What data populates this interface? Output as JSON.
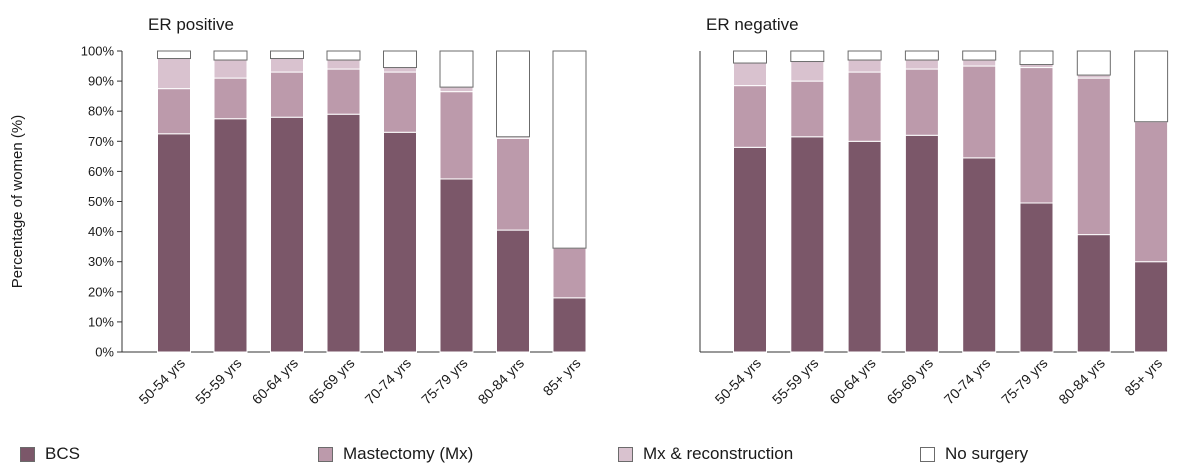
{
  "chart_data": [
    {
      "type": "bar",
      "stacked": true,
      "title": "ER positive",
      "ylabel": "Percentage of women (%)",
      "ylim": [
        0,
        100
      ],
      "yticks": [
        "0%",
        "10%",
        "20%",
        "30%",
        "40%",
        "50%",
        "60%",
        "70%",
        "80%",
        "90%",
        "100%"
      ],
      "categories": [
        "50-54 yrs",
        "55-59 yrs",
        "60-64 yrs",
        "65-69 yrs",
        "70-74 yrs",
        "75-79 yrs",
        "80-84 yrs",
        "85+ yrs"
      ],
      "series": [
        {
          "name": "BCS",
          "color": "#7b5769",
          "values": [
            72.5,
            77.5,
            78,
            79,
            73,
            57.5,
            40.5,
            18
          ]
        },
        {
          "name": "Mastectomy (Mx)",
          "color": "#bc9aab",
          "values": [
            15,
            13.5,
            15,
            15,
            20,
            29,
            30.5,
            16.5
          ]
        },
        {
          "name": "Mx & reconstruction",
          "color": "#d9c2cf",
          "values": [
            10,
            6,
            4.5,
            3,
            1.5,
            1.5,
            0.5,
            0
          ]
        },
        {
          "name": "No surgery",
          "color": "#ffffff",
          "values": [
            2.5,
            3,
            2.5,
            3,
            5.5,
            12,
            28.5,
            65.5
          ]
        }
      ]
    },
    {
      "type": "bar",
      "stacked": true,
      "title": "ER negative",
      "ylim": [
        0,
        100
      ],
      "categories": [
        "50-54 yrs",
        "55-59 yrs",
        "60-64 yrs",
        "65-69 yrs",
        "70-74 yrs",
        "75-79 yrs",
        "80-84 yrs",
        "85+ yrs"
      ],
      "series": [
        {
          "name": "BCS",
          "color": "#7b5769",
          "values": [
            68,
            71.5,
            70,
            72,
            64.5,
            49.5,
            39,
            30
          ]
        },
        {
          "name": "Mastectomy (Mx)",
          "color": "#bc9aab",
          "values": [
            20.5,
            18.5,
            23,
            22,
            30.5,
            45,
            52,
            46.5
          ]
        },
        {
          "name": "Mx & reconstruction",
          "color": "#d9c2cf",
          "values": [
            7.5,
            6.5,
            4,
            3,
            2,
            1,
            1,
            0
          ]
        },
        {
          "name": "No surgery",
          "color": "#ffffff",
          "values": [
            4,
            3.5,
            3,
            3,
            3,
            4.5,
            8,
            23.5
          ]
        }
      ]
    }
  ],
  "legend": [
    {
      "label": "BCS",
      "color": "#7b5769"
    },
    {
      "label": "Mastectomy (Mx)",
      "color": "#bc9aab"
    },
    {
      "label": "Mx & reconstruction",
      "color": "#d9c2cf"
    },
    {
      "label": "No surgery",
      "color": "#ffffff"
    }
  ]
}
